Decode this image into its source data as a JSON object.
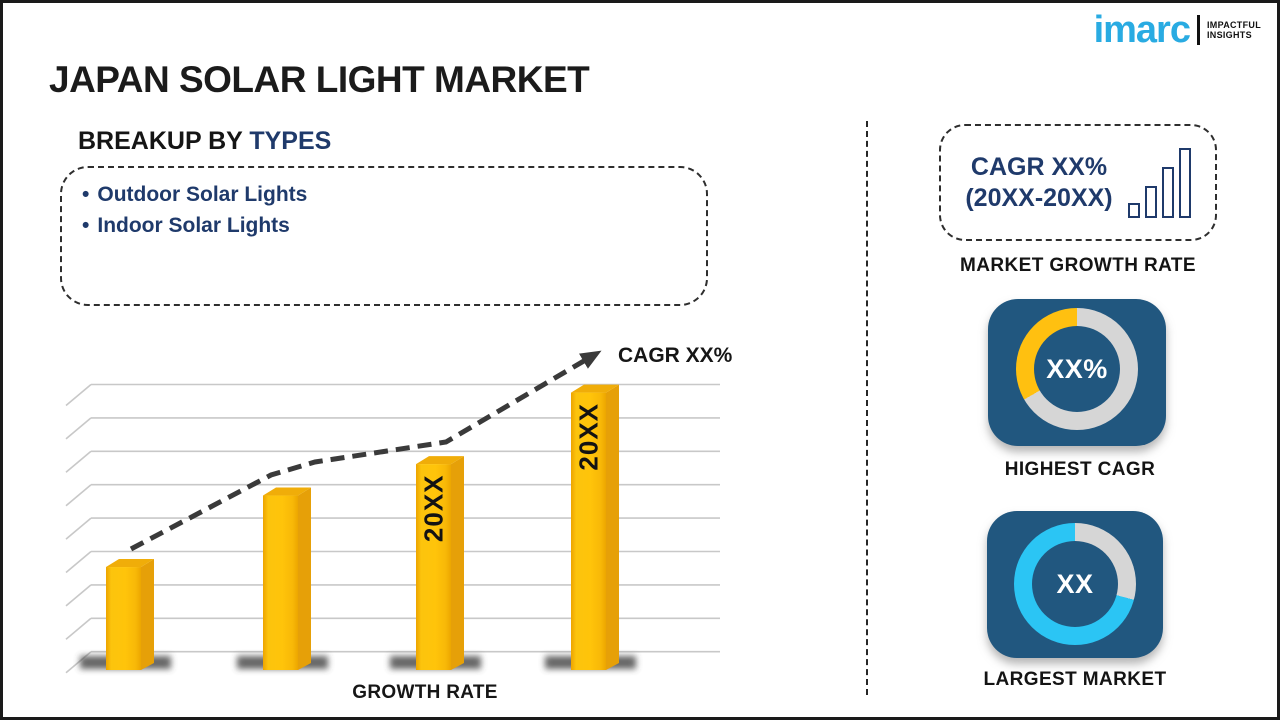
{
  "page_title": "JAPAN SOLAR LIGHT MARKET",
  "logo": {
    "brand": "imarc",
    "tagline_top": "IMPACTFUL",
    "tagline_bottom": "INSIGHTS",
    "brand_color": "#29ABE2"
  },
  "breakup": {
    "heading_black": "BREAKUP BY",
    "heading_blue": "TYPES",
    "bullet": "•",
    "items": [
      "Outdoor Solar Lights",
      "Indoor Solar Lights"
    ]
  },
  "chart_data": {
    "type": "bar",
    "title": "",
    "categories": [
      "",
      "",
      "20XX",
      "20XX"
    ],
    "bar_labels": [
      "",
      "",
      "20XX",
      "20XX"
    ],
    "values": [
      36,
      61,
      72,
      97
    ],
    "ylim": [
      0,
      100
    ],
    "xlabel": "GROWTH RATE",
    "ylabel": "",
    "trend_label": "CAGR XX%",
    "trend_style": "dashed-arrow",
    "grid": true,
    "bar_color": "#FFC40A",
    "grid_color": "#c8c8c8",
    "trend_color": "#3a3a3a"
  },
  "right_panel": {
    "cagr_box": {
      "line1": "CAGR XX%",
      "line2": "(20XX-20XX)"
    },
    "growth_rate_caption": "MARKET GROWTH RATE",
    "cards": [
      {
        "value": "XX%",
        "label": "HIGHEST CAGR",
        "bg": "#21577F",
        "ring_base": "#D6D6D6",
        "ring_accent": "#FFC010",
        "accent_start_deg": 240,
        "accent_end_deg": 360
      },
      {
        "value": "XX",
        "label": "LARGEST MARKET",
        "bg": "#21577F",
        "ring_base": "#2BC5F4",
        "ring_accent": "#D6D6D6",
        "accent_start_deg": 0,
        "accent_end_deg": 105
      }
    ]
  }
}
